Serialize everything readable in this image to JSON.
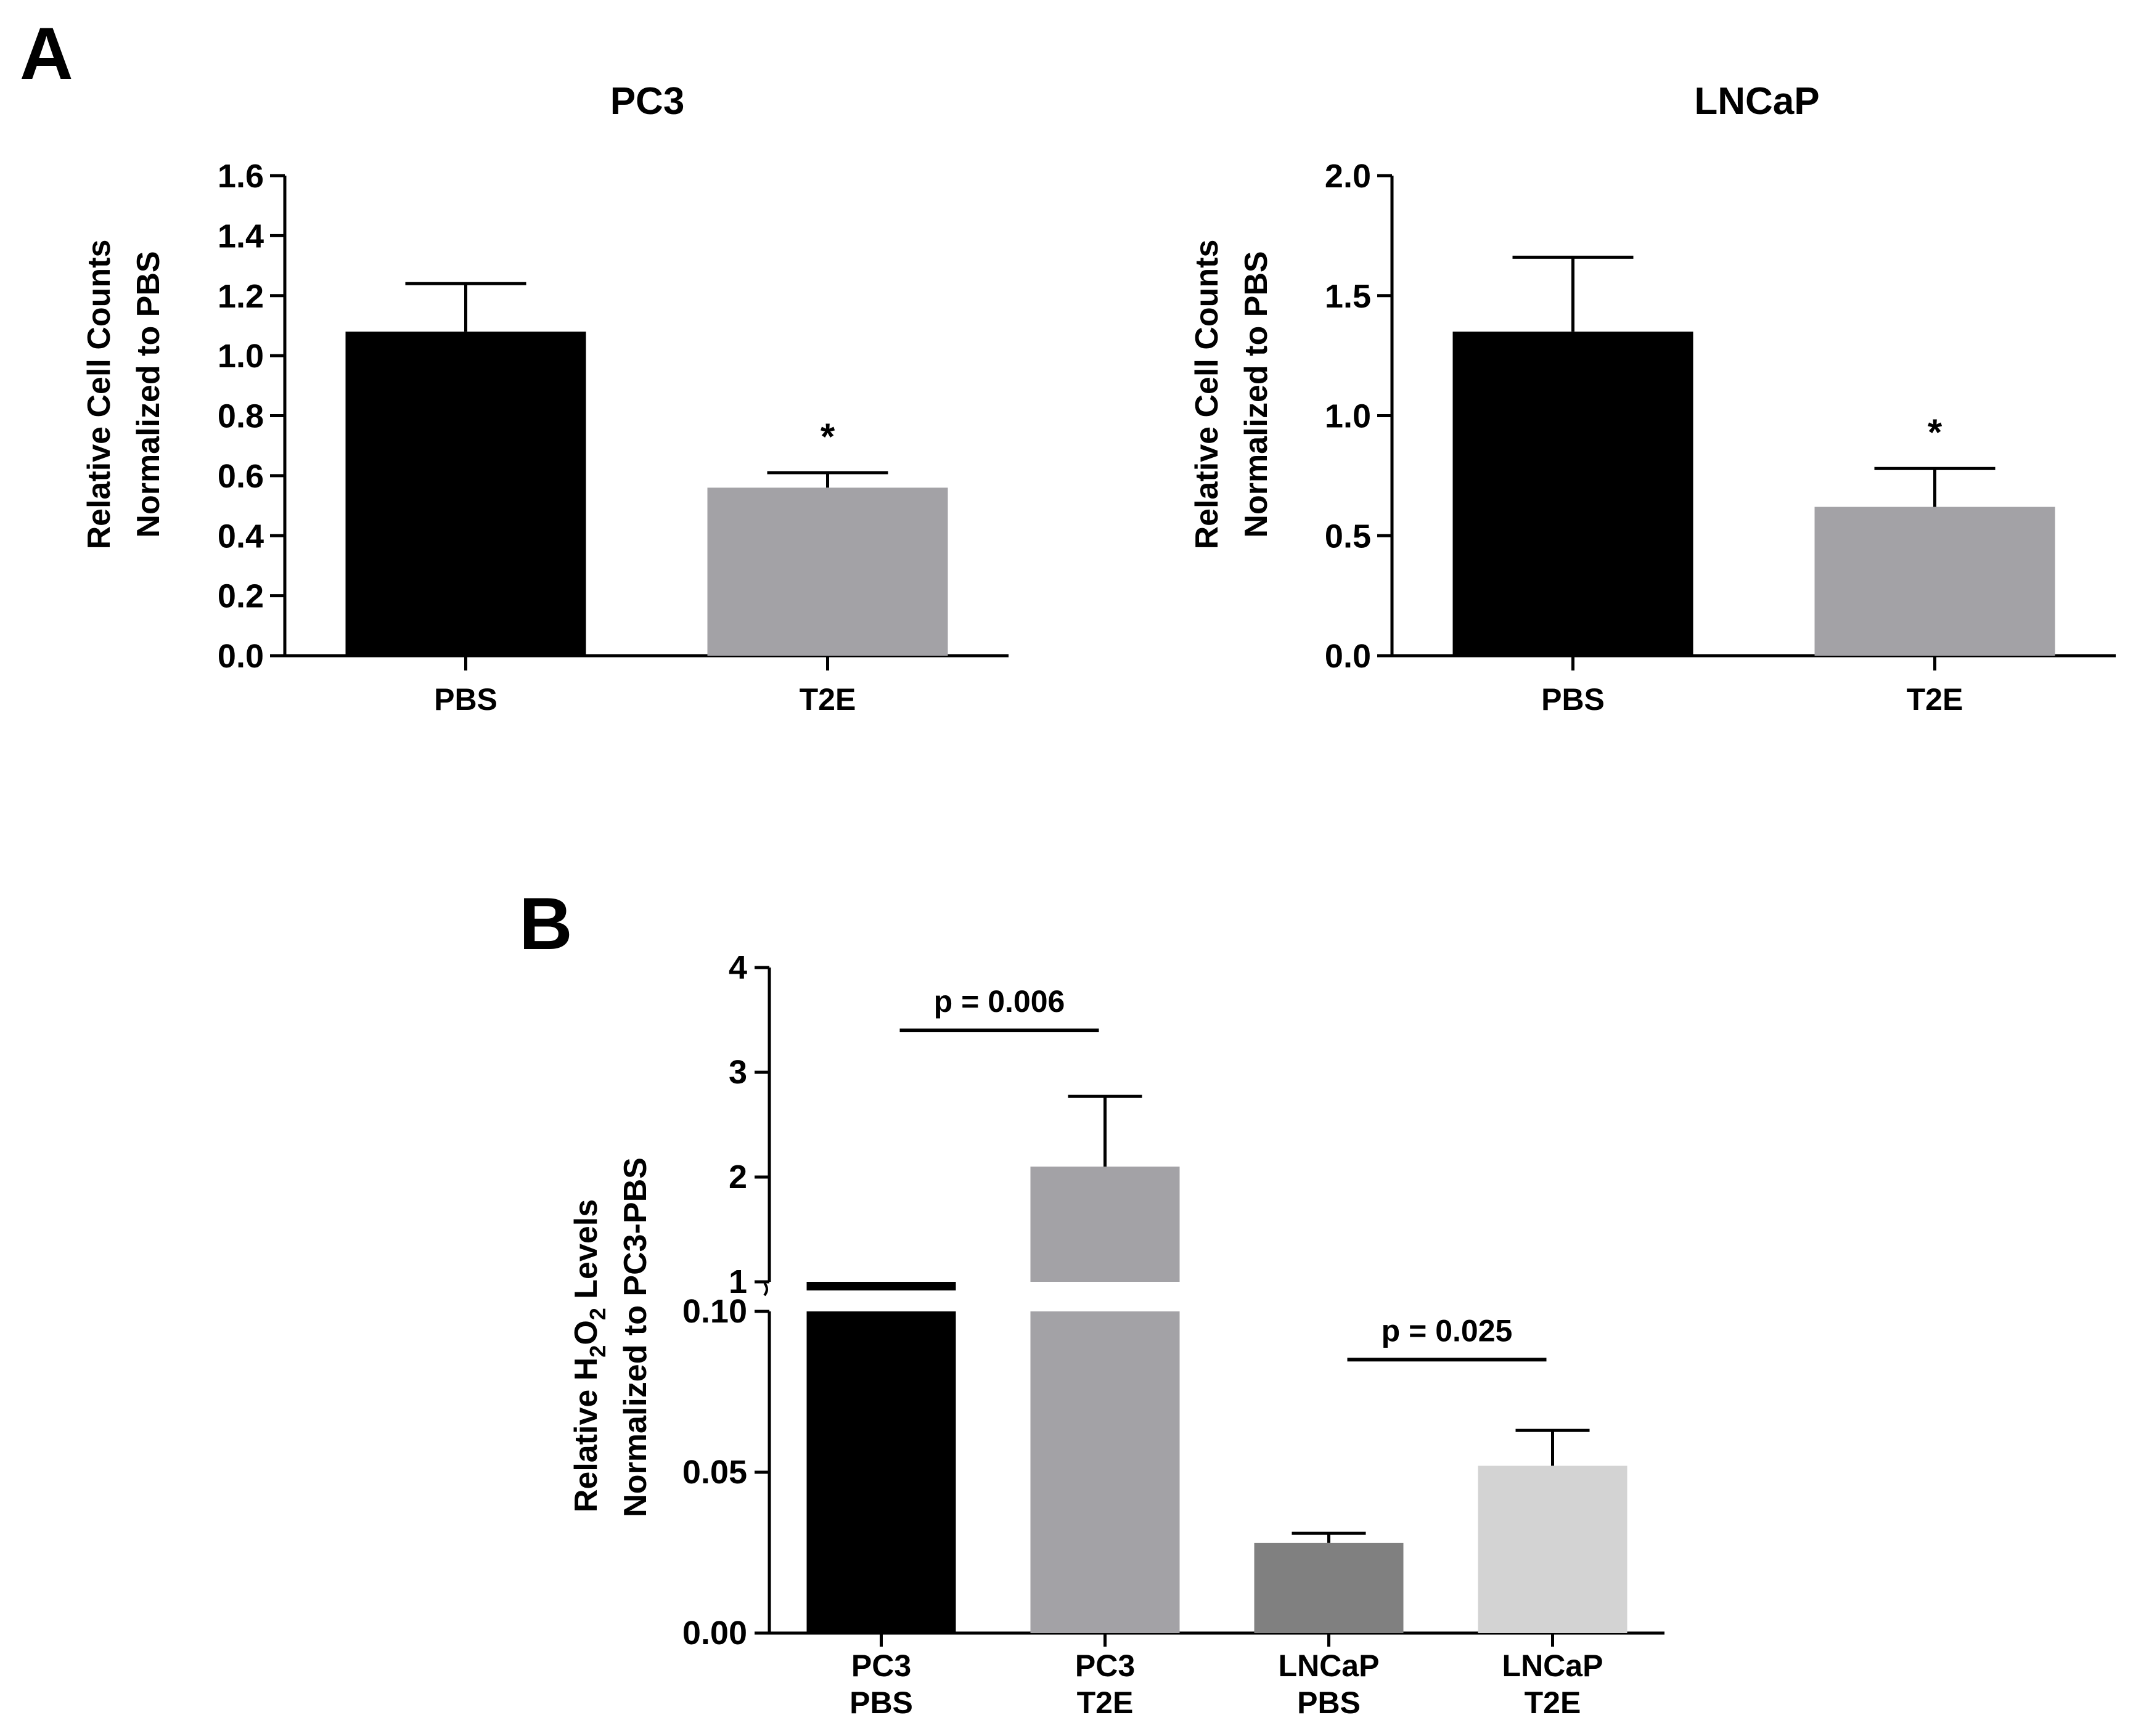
{
  "panel_labels": {
    "a": "A",
    "b": "B"
  },
  "colors": {
    "black": "#000000",
    "gray": "#a3a2a6",
    "dark_gray": "#808080",
    "light_gray": "#d3d3d3"
  },
  "chart_data": [
    {
      "panel": "A",
      "type": "bar",
      "title": "PC3",
      "ylabel_line1": "Relative Cell Counts",
      "ylabel_line2": "Normalized to PBS",
      "categories": [
        "PBS",
        "T2E"
      ],
      "values": [
        1.08,
        0.56
      ],
      "errors": [
        0.16,
        0.05
      ],
      "colors": [
        "#000000",
        "#a3a2a6"
      ],
      "significance": [
        "",
        "*"
      ],
      "ylim": [
        0,
        1.6
      ],
      "yticks": [
        0.0,
        0.2,
        0.4,
        0.6,
        0.8,
        1.0,
        1.2,
        1.4,
        1.6
      ],
      "ytick_labels": [
        "0.0",
        "0.2",
        "0.4",
        "0.6",
        "0.8",
        "1.0",
        "1.2",
        "1.4",
        "1.6"
      ]
    },
    {
      "panel": "A",
      "type": "bar",
      "title": "LNCaP",
      "ylabel_line1": "Relative Cell Counts",
      "ylabel_line2": "Normalized to PBS",
      "categories": [
        "PBS",
        "T2E"
      ],
      "values": [
        1.35,
        0.62
      ],
      "errors": [
        0.31,
        0.16
      ],
      "colors": [
        "#000000",
        "#a3a2a6"
      ],
      "significance": [
        "",
        "*"
      ],
      "ylim": [
        0,
        2.0
      ],
      "yticks": [
        0.0,
        0.5,
        1.0,
        1.5,
        2.0
      ],
      "ytick_labels": [
        "0.0",
        "0.5",
        "1.0",
        "1.5",
        "2.0"
      ]
    },
    {
      "panel": "B",
      "type": "bar",
      "title": "",
      "ylabel_line1_pre": "Relative H",
      "ylabel_sub1": "2",
      "ylabel_mid": "O",
      "ylabel_sub2": "2",
      "ylabel_post": " Levels",
      "ylabel_line2": "Normalized to PC3-PBS",
      "categories": [
        [
          "PC3",
          "PBS"
        ],
        [
          "PC3",
          "T2E"
        ],
        [
          "LNCaP",
          "PBS"
        ],
        [
          "LNCaP",
          "T2E"
        ]
      ],
      "values": [
        1.0,
        2.1,
        0.028,
        0.052
      ],
      "errors": [
        0.0,
        0.67,
        0.003,
        0.011
      ],
      "colors": [
        "#000000",
        "#a3a2a6",
        "#808080",
        "#d3d3d3"
      ],
      "axis_break": true,
      "lower_ylim": [
        0,
        0.1
      ],
      "lower_yticks": [
        0.0,
        0.05,
        0.1
      ],
      "lower_ytick_labels": [
        "0.00",
        "0.05",
        "0.10"
      ],
      "upper_ylim": [
        1,
        4
      ],
      "upper_yticks": [
        1,
        2,
        3,
        4
      ],
      "upper_ytick_labels": [
        "1",
        "2",
        "3",
        "4"
      ],
      "comparisons": [
        {
          "from": 0,
          "to": 1,
          "label": "p = 0.006",
          "y": 3.4,
          "segment": "upper"
        },
        {
          "from": 2,
          "to": 3,
          "label": "p = 0.025",
          "y": 0.085,
          "segment": "lower"
        }
      ]
    }
  ]
}
